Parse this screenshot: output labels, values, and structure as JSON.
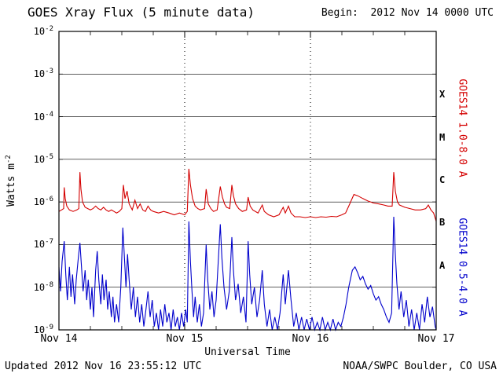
{
  "header": {
    "title": "GOES Xray Flux (5 minute data)",
    "begin_label": "Begin:  2012 Nov 14 0000 UTC"
  },
  "footer": {
    "updated": "Updated 2012 Nov 16 23:55:12 UTC",
    "credit": "NOAA/SWPC Boulder, CO USA"
  },
  "chart_data": {
    "type": "line",
    "title": "GOES Xray Flux (5 minute data)",
    "xlabel": "Universal Time",
    "ylabel": "Watts m^-2",
    "ylabel_base": "Watts m",
    "ylabel_exponent": "-2",
    "y_scale": "log",
    "y_range_exponents": [
      -9,
      -2
    ],
    "y_tick_base": "10",
    "y_tick_exponents": [
      -2,
      -3,
      -4,
      -5,
      -6,
      -7,
      -8,
      -9
    ],
    "x_range_hours": [
      0,
      72
    ],
    "x_tick_hours": [
      0,
      24,
      48,
      72
    ],
    "x_tick_labels": [
      "Nov 14",
      "Nov 15",
      "Nov 16",
      "Nov 17"
    ],
    "x_minor_tick_hours": 6,
    "grid": {
      "horizontal": "solid line at each decade",
      "vertical": "dotted line at each day boundary"
    },
    "flare_classes": [
      {
        "label": "X",
        "log10_flux": -3.5
      },
      {
        "label": "M",
        "log10_flux": -4.5
      },
      {
        "label": "C",
        "log10_flux": -5.5
      },
      {
        "label": "B",
        "log10_flux": -6.5
      },
      {
        "label": "A",
        "log10_flux": -7.5
      }
    ],
    "series": [
      {
        "name": "GOES14 1.0-8.0 A",
        "color": "#d40000",
        "points": [
          [
            0,
            6e-07
          ],
          [
            0.5,
            6.5e-07
          ],
          [
            0.9,
            7e-07
          ],
          [
            1,
            2.2e-06
          ],
          [
            1.2,
            1.2e-06
          ],
          [
            1.5,
            8e-07
          ],
          [
            2,
            6.5e-07
          ],
          [
            2.7,
            6e-07
          ],
          [
            3.4,
            6.5e-07
          ],
          [
            3.8,
            7e-07
          ],
          [
            4,
            5e-06
          ],
          [
            4.2,
            2e-06
          ],
          [
            4.5,
            1e-06
          ],
          [
            5,
            7.5e-07
          ],
          [
            5.5,
            7e-07
          ],
          [
            6,
            6.5e-07
          ],
          [
            6.5,
            7e-07
          ],
          [
            7,
            8e-07
          ],
          [
            7.5,
            7e-07
          ],
          [
            8,
            6.5e-07
          ],
          [
            8.5,
            7.5e-07
          ],
          [
            9,
            6.5e-07
          ],
          [
            9.5,
            6e-07
          ],
          [
            10,
            6.5e-07
          ],
          [
            10.5,
            6e-07
          ],
          [
            11,
            5.5e-07
          ],
          [
            11.5,
            6e-07
          ],
          [
            12,
            7e-07
          ],
          [
            12.3,
            2.5e-06
          ],
          [
            12.6,
            1.2e-06
          ],
          [
            13,
            1.8e-06
          ],
          [
            13.4,
            9e-07
          ],
          [
            14,
            6.5e-07
          ],
          [
            14.5,
            1.1e-06
          ],
          [
            15,
            7e-07
          ],
          [
            15.5,
            9e-07
          ],
          [
            16,
            6.5e-07
          ],
          [
            16.5,
            6e-07
          ],
          [
            17,
            8e-07
          ],
          [
            17.5,
            6.5e-07
          ],
          [
            18,
            6e-07
          ],
          [
            19,
            5.5e-07
          ],
          [
            20,
            6e-07
          ],
          [
            21,
            5.5e-07
          ],
          [
            22,
            5e-07
          ],
          [
            23,
            5.5e-07
          ],
          [
            24,
            5e-07
          ],
          [
            24.5,
            6e-07
          ],
          [
            24.8,
            6e-06
          ],
          [
            25.1,
            2.5e-06
          ],
          [
            25.5,
            1.2e-06
          ],
          [
            26,
            8e-07
          ],
          [
            26.5,
            7e-07
          ],
          [
            27,
            6.5e-07
          ],
          [
            27.8,
            7e-07
          ],
          [
            28.1,
            2e-06
          ],
          [
            28.5,
            9e-07
          ],
          [
            29,
            7e-07
          ],
          [
            29.5,
            6e-07
          ],
          [
            30.2,
            6.5e-07
          ],
          [
            30.8,
            2.3e-06
          ],
          [
            31.2,
            1.3e-06
          ],
          [
            31.6,
            9e-07
          ],
          [
            32,
            7.5e-07
          ],
          [
            32.6,
            7e-07
          ],
          [
            33,
            2.5e-06
          ],
          [
            33.3,
            1.4e-06
          ],
          [
            33.7,
            9e-07
          ],
          [
            34.3,
            7e-07
          ],
          [
            35,
            6e-07
          ],
          [
            35.8,
            6.5e-07
          ],
          [
            36.1,
            1.3e-06
          ],
          [
            36.5,
            8e-07
          ],
          [
            37,
            6.5e-07
          ],
          [
            38,
            5.5e-07
          ],
          [
            38.8,
            8.5e-07
          ],
          [
            39.2,
            6e-07
          ],
          [
            40,
            5e-07
          ],
          [
            41,
            4.5e-07
          ],
          [
            42,
            5e-07
          ],
          [
            42.8,
            7.5e-07
          ],
          [
            43.2,
            5.5e-07
          ],
          [
            43.8,
            8e-07
          ],
          [
            44.3,
            5.5e-07
          ],
          [
            45,
            4.5e-07
          ],
          [
            46,
            4.5e-07
          ],
          [
            47,
            4.3e-07
          ],
          [
            48,
            4.5e-07
          ],
          [
            49,
            4.3e-07
          ],
          [
            50,
            4.5e-07
          ],
          [
            51,
            4.4e-07
          ],
          [
            52,
            4.6e-07
          ],
          [
            53,
            4.5e-07
          ],
          [
            54,
            5e-07
          ],
          [
            54.7,
            5.5e-07
          ],
          [
            55.5,
            9e-07
          ],
          [
            56.3,
            1.5e-06
          ],
          [
            57,
            1.4e-06
          ],
          [
            58,
            1.2e-06
          ],
          [
            59,
            1.05e-06
          ],
          [
            60,
            9.5e-07
          ],
          [
            61,
            9e-07
          ],
          [
            62,
            8.5e-07
          ],
          [
            62.8,
            8e-07
          ],
          [
            63.6,
            8e-07
          ],
          [
            63.9,
            5e-06
          ],
          [
            64.2,
            1.8e-06
          ],
          [
            64.6,
            1e-06
          ],
          [
            65,
            8.5e-07
          ],
          [
            66,
            7.5e-07
          ],
          [
            67,
            7e-07
          ],
          [
            68,
            6.5e-07
          ],
          [
            69,
            6.5e-07
          ],
          [
            70,
            7e-07
          ],
          [
            70.5,
            8.5e-07
          ],
          [
            71,
            6.5e-07
          ],
          [
            71.5,
            5.5e-07
          ],
          [
            72,
            3.5e-07
          ]
        ]
      },
      {
        "name": "GOES14 0.5-4.0 A",
        "color": "#0000cc",
        "points": [
          [
            0,
            3e-08
          ],
          [
            0.3,
            8e-09
          ],
          [
            0.6,
            4e-08
          ],
          [
            1,
            1.2e-07
          ],
          [
            1.3,
            2e-08
          ],
          [
            1.6,
            5e-09
          ],
          [
            2,
            3e-08
          ],
          [
            2.3,
            6e-09
          ],
          [
            2.6,
            2e-08
          ],
          [
            3,
            4e-09
          ],
          [
            3.3,
            1.5e-08
          ],
          [
            3.7,
            5e-08
          ],
          [
            4,
            1.1e-07
          ],
          [
            4.3,
            3e-08
          ],
          [
            4.6,
            8e-09
          ],
          [
            5,
            2.5e-08
          ],
          [
            5.3,
            5e-09
          ],
          [
            5.6,
            1.5e-08
          ],
          [
            6,
            3e-09
          ],
          [
            6.3,
            1e-08
          ],
          [
            6.6,
            2e-09
          ],
          [
            7,
            2.5e-08
          ],
          [
            7.3,
            7e-08
          ],
          [
            7.6,
            1.5e-08
          ],
          [
            8,
            4e-09
          ],
          [
            8.3,
            2e-08
          ],
          [
            8.6,
            5e-09
          ],
          [
            9,
            1.5e-08
          ],
          [
            9.3,
            3e-09
          ],
          [
            9.6,
            8e-09
          ],
          [
            10,
            2e-09
          ],
          [
            10.3,
            6e-09
          ],
          [
            10.6,
            1.5e-09
          ],
          [
            11,
            4e-09
          ],
          [
            11.4,
            1.5e-09
          ],
          [
            11.8,
            1e-08
          ],
          [
            12.2,
            2.5e-07
          ],
          [
            12.5,
            5e-08
          ],
          [
            12.8,
            1e-08
          ],
          [
            13.1,
            6e-08
          ],
          [
            13.4,
            1.5e-08
          ],
          [
            13.8,
            3e-09
          ],
          [
            14.2,
            1e-08
          ],
          [
            14.6,
            2e-09
          ],
          [
            15,
            6e-09
          ],
          [
            15.4,
            1.5e-09
          ],
          [
            15.8,
            4e-09
          ],
          [
            16.2,
            1.2e-09
          ],
          [
            16.6,
            3e-09
          ],
          [
            17,
            8e-09
          ],
          [
            17.4,
            2e-09
          ],
          [
            17.8,
            5e-09
          ],
          [
            18.2,
            1.2e-09
          ],
          [
            18.6,
            2.5e-09
          ],
          [
            19,
            1e-09
          ],
          [
            19.4,
            3e-09
          ],
          [
            19.8,
            1.2e-09
          ],
          [
            20.2,
            4e-09
          ],
          [
            20.6,
            1.5e-09
          ],
          [
            21,
            2.5e-09
          ],
          [
            21.4,
            1e-09
          ],
          [
            21.8,
            3e-09
          ],
          [
            22.2,
            1.2e-09
          ],
          [
            22.6,
            2e-09
          ],
          [
            23,
            1e-09
          ],
          [
            23.4,
            2.5e-09
          ],
          [
            23.8,
            1.2e-09
          ],
          [
            24.2,
            3e-09
          ],
          [
            24.5,
            1.5e-09
          ],
          [
            24.8,
            3.5e-07
          ],
          [
            25.1,
            4e-08
          ],
          [
            25.4,
            8e-09
          ],
          [
            25.7,
            2e-09
          ],
          [
            26,
            6e-09
          ],
          [
            26.4,
            1.5e-09
          ],
          [
            26.8,
            4e-09
          ],
          [
            27.2,
            1.2e-09
          ],
          [
            27.6,
            2.5e-09
          ],
          [
            28.1,
            1e-07
          ],
          [
            28.4,
            1.5e-08
          ],
          [
            28.8,
            3e-09
          ],
          [
            29.2,
            8e-09
          ],
          [
            29.6,
            2e-09
          ],
          [
            30,
            5e-09
          ],
          [
            30.8,
            3e-07
          ],
          [
            31.1,
            5e-08
          ],
          [
            31.5,
            1e-08
          ],
          [
            32,
            3e-09
          ],
          [
            32.5,
            8e-09
          ],
          [
            33,
            1.5e-07
          ],
          [
            33.3,
            2.5e-08
          ],
          [
            33.7,
            5e-09
          ],
          [
            34.2,
            1.2e-08
          ],
          [
            34.7,
            2.5e-09
          ],
          [
            35.2,
            6e-09
          ],
          [
            35.7,
            1.5e-09
          ],
          [
            36.1,
            1.2e-07
          ],
          [
            36.4,
            2e-08
          ],
          [
            36.8,
            4e-09
          ],
          [
            37.3,
            1e-08
          ],
          [
            37.8,
            2e-09
          ],
          [
            38.3,
            5e-09
          ],
          [
            38.8,
            2.5e-08
          ],
          [
            39.2,
            4e-09
          ],
          [
            39.7,
            1.2e-09
          ],
          [
            40.2,
            3e-09
          ],
          [
            40.7,
            1e-09
          ],
          [
            41.2,
            2e-09
          ],
          [
            41.7,
            1e-09
          ],
          [
            42.2,
            2.5e-09
          ],
          [
            42.8,
            2e-08
          ],
          [
            43.2,
            4e-09
          ],
          [
            43.8,
            2.5e-08
          ],
          [
            44.3,
            5e-09
          ],
          [
            44.8,
            1.2e-09
          ],
          [
            45.3,
            2.5e-09
          ],
          [
            45.8,
            1e-09
          ],
          [
            46.3,
            2e-09
          ],
          [
            46.8,
            1e-09
          ],
          [
            47.3,
            1.8e-09
          ],
          [
            47.8,
            1e-09
          ],
          [
            48.3,
            2e-09
          ],
          [
            48.8,
            1e-09
          ],
          [
            49.3,
            1.5e-09
          ],
          [
            49.8,
            1e-09
          ],
          [
            50.3,
            2e-09
          ],
          [
            50.8,
            1e-09
          ],
          [
            51.3,
            1.5e-09
          ],
          [
            51.8,
            1e-09
          ],
          [
            52.3,
            1.8e-09
          ],
          [
            52.8,
            1e-09
          ],
          [
            53.3,
            1.5e-09
          ],
          [
            53.8,
            1.2e-09
          ],
          [
            54.3,
            2e-09
          ],
          [
            54.8,
            4e-09
          ],
          [
            55.3,
            1e-08
          ],
          [
            56,
            2.5e-08
          ],
          [
            56.5,
            3e-08
          ],
          [
            57,
            2.2e-08
          ],
          [
            57.5,
            1.5e-08
          ],
          [
            58,
            1.8e-08
          ],
          [
            58.5,
            1.2e-08
          ],
          [
            59,
            9e-09
          ],
          [
            59.5,
            1.1e-08
          ],
          [
            60,
            7e-09
          ],
          [
            60.5,
            5e-09
          ],
          [
            61,
            6e-09
          ],
          [
            61.5,
            4e-09
          ],
          [
            62,
            3e-09
          ],
          [
            62.5,
            2e-09
          ],
          [
            63,
            1.5e-09
          ],
          [
            63.5,
            2.5e-09
          ],
          [
            63.9,
            4.5e-07
          ],
          [
            64.2,
            6e-08
          ],
          [
            64.5,
            1.2e-08
          ],
          [
            64.9,
            3e-09
          ],
          [
            65.3,
            8e-09
          ],
          [
            65.8,
            2e-09
          ],
          [
            66.3,
            5e-09
          ],
          [
            66.8,
            1.2e-09
          ],
          [
            67.3,
            3e-09
          ],
          [
            67.8,
            1e-09
          ],
          [
            68.3,
            2.5e-09
          ],
          [
            68.8,
            1e-09
          ],
          [
            69.3,
            4e-09
          ],
          [
            69.8,
            1.5e-09
          ],
          [
            70.3,
            6e-09
          ],
          [
            70.8,
            2e-09
          ],
          [
            71.3,
            3.5e-09
          ],
          [
            71.8,
            1.2e-09
          ],
          [
            72,
            1e-09
          ]
        ]
      }
    ]
  },
  "colors": {
    "background": "#ffffff",
    "axis": "#000000",
    "long_channel": "#d40000",
    "short_channel": "#0000cc"
  }
}
